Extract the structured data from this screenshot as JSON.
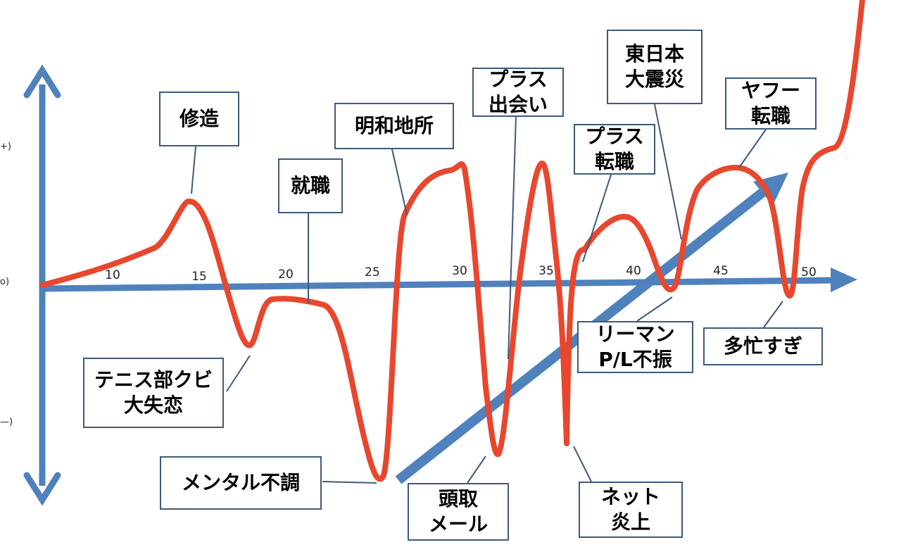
{
  "side_labels": {
    "plus": "+)",
    "zero": "o)",
    "minus": "—)"
  },
  "ticks": [
    "10",
    "15",
    "20",
    "25",
    "30",
    "35",
    "40",
    "45",
    "50"
  ],
  "events": [
    {
      "id": "shuzo",
      "label": "修造"
    },
    {
      "id": "shushoku",
      "label": "就職"
    },
    {
      "id": "meiwa",
      "label": "明和地所"
    },
    {
      "id": "plus-deai",
      "label": "プラス\n出会い"
    },
    {
      "id": "plus-tenshoku",
      "label": "プラス\n転職"
    },
    {
      "id": "shinsai",
      "label": "東日本\n大震災"
    },
    {
      "id": "yahoo",
      "label": "ヤフー\n転職"
    },
    {
      "id": "tennis",
      "label": "テニス部クビ\n大失恋"
    },
    {
      "id": "mental",
      "label": "メンタル不調"
    },
    {
      "id": "toudori",
      "label": "頭取\nメール"
    },
    {
      "id": "enjo",
      "label": "ネット\n炎上"
    },
    {
      "id": "lehman",
      "label": "リーマン\nP/L不振"
    },
    {
      "id": "tabou",
      "label": "多忙すぎ"
    }
  ],
  "colors": {
    "axis": "#4f81bd",
    "curve": "#e8472e",
    "box_border": "#3d5a7a"
  }
}
